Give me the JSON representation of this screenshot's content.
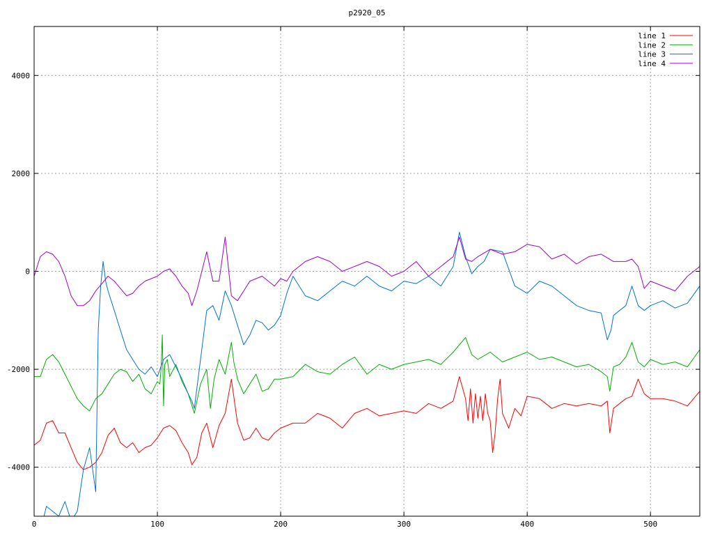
{
  "chart_data": {
    "type": "line",
    "title": "p2920_05",
    "xlabel": "",
    "ylabel": "",
    "xlim": [
      0,
      540
    ],
    "ylim": [
      -5000,
      5000
    ],
    "x_ticks": [
      0,
      100,
      200,
      300,
      400,
      500
    ],
    "y_ticks": [
      -4000,
      -2000,
      0,
      2000,
      4000
    ],
    "grid": true,
    "legend_position": "top-right",
    "series": [
      {
        "name": "line 1",
        "color": "#ff0000",
        "x": [
          0,
          5,
          10,
          15,
          20,
          25,
          30,
          35,
          40,
          45,
          50,
          55,
          60,
          65,
          70,
          75,
          80,
          85,
          90,
          95,
          100,
          105,
          110,
          115,
          120,
          125,
          128,
          132,
          136,
          140,
          145,
          150,
          155,
          160,
          165,
          170,
          175,
          180,
          185,
          190,
          195,
          200,
          210,
          220,
          230,
          240,
          250,
          260,
          270,
          280,
          290,
          300,
          310,
          320,
          330,
          340,
          345,
          350,
          352,
          354,
          356,
          358,
          360,
          362,
          364,
          366,
          368,
          370,
          372,
          374,
          376,
          378,
          380,
          385,
          390,
          395,
          400,
          410,
          420,
          430,
          440,
          450,
          460,
          465,
          467,
          470,
          475,
          480,
          485,
          490,
          495,
          500,
          510,
          520,
          530,
          540
        ],
        "y": [
          -3550,
          -3450,
          -3100,
          -3050,
          -3300,
          -3300,
          -3600,
          -3900,
          -4050,
          -4000,
          -3900,
          -3700,
          -3350,
          -3200,
          -3500,
          -3600,
          -3500,
          -3700,
          -3600,
          -3550,
          -3400,
          -3200,
          -3150,
          -3250,
          -3500,
          -3700,
          -3950,
          -3800,
          -3300,
          -3100,
          -3600,
          -3150,
          -2900,
          -2200,
          -3100,
          -3450,
          -3400,
          -3200,
          -3400,
          -3450,
          -3300,
          -3200,
          -3100,
          -3100,
          -2900,
          -3000,
          -3200,
          -2900,
          -2800,
          -2950,
          -2900,
          -2850,
          -2900,
          -2700,
          -2800,
          -2650,
          -2150,
          -2600,
          -3050,
          -2400,
          -3100,
          -2500,
          -3000,
          -2550,
          -3050,
          -2500,
          -2900,
          -3050,
          -3700,
          -3300,
          -2600,
          -2200,
          -2900,
          -3200,
          -2800,
          -2950,
          -2550,
          -2600,
          -2800,
          -2700,
          -2750,
          -2700,
          -2750,
          -2650,
          -3300,
          -2800,
          -2700,
          -2600,
          -2550,
          -2200,
          -2500,
          -2600,
          -2600,
          -2650,
          -2750,
          -2450
        ]
      },
      {
        "name": "line 2",
        "color": "#00b000",
        "x": [
          0,
          5,
          10,
          15,
          20,
          25,
          30,
          35,
          40,
          45,
          50,
          55,
          60,
          65,
          70,
          75,
          80,
          85,
          90,
          95,
          100,
          102,
          103,
          104,
          105,
          106,
          108,
          110,
          115,
          120,
          125,
          130,
          135,
          140,
          143,
          146,
          150,
          155,
          160,
          162,
          165,
          170,
          175,
          180,
          185,
          190,
          195,
          200,
          210,
          220,
          230,
          240,
          250,
          260,
          270,
          280,
          290,
          300,
          310,
          320,
          330,
          340,
          350,
          355,
          360,
          370,
          380,
          390,
          400,
          410,
          420,
          430,
          440,
          450,
          460,
          465,
          467,
          470,
          475,
          480,
          485,
          490,
          495,
          500,
          510,
          520,
          530,
          540
        ],
        "y": [
          -2150,
          -2150,
          -1800,
          -1700,
          -1850,
          -2100,
          -2350,
          -2600,
          -2750,
          -2850,
          -2600,
          -2500,
          -2300,
          -2100,
          -2000,
          -2050,
          -2250,
          -2100,
          -2400,
          -2500,
          -2250,
          -2300,
          -2000,
          -1300,
          -2750,
          -1900,
          -1800,
          -2150,
          -1900,
          -2250,
          -2500,
          -2900,
          -2300,
          -2000,
          -2800,
          -2200,
          -1800,
          -2100,
          -1450,
          -1850,
          -2200,
          -2500,
          -2300,
          -2100,
          -2450,
          -2400,
          -2200,
          -2200,
          -2150,
          -1900,
          -2050,
          -2100,
          -1900,
          -1750,
          -2100,
          -1900,
          -2000,
          -1900,
          -1850,
          -1800,
          -1900,
          -1650,
          -1350,
          -1700,
          -1800,
          -1650,
          -1850,
          -1750,
          -1650,
          -1800,
          -1750,
          -1850,
          -1950,
          -1900,
          -2050,
          -2150,
          -2450,
          -1950,
          -1900,
          -1750,
          -1450,
          -1850,
          -1950,
          -1800,
          -1900,
          -1850,
          -1950,
          -1600
        ]
      },
      {
        "name": "line 3",
        "color": "#0070e0",
        "x": [
          0,
          5,
          10,
          15,
          20,
          25,
          30,
          35,
          40,
          45,
          50,
          52,
          54,
          56,
          58,
          60,
          65,
          70,
          75,
          80,
          85,
          90,
          95,
          100,
          105,
          110,
          115,
          120,
          125,
          128,
          130,
          135,
          140,
          145,
          150,
          155,
          160,
          165,
          170,
          175,
          180,
          185,
          190,
          195,
          200,
          205,
          210,
          220,
          230,
          240,
          250,
          260,
          270,
          280,
          290,
          300,
          310,
          320,
          330,
          340,
          345,
          350,
          355,
          360,
          365,
          370,
          380,
          390,
          400,
          410,
          420,
          430,
          440,
          450,
          460,
          465,
          468,
          470,
          475,
          480,
          485,
          490,
          495,
          500,
          510,
          520,
          530,
          540
        ],
        "y": [
          -5500,
          -5300,
          -4800,
          -4900,
          -5000,
          -4700,
          -5100,
          -4900,
          -4050,
          -3600,
          -4500,
          -1200,
          -300,
          200,
          -200,
          -400,
          -800,
          -1200,
          -1600,
          -1800,
          -2000,
          -2100,
          -1950,
          -2150,
          -1800,
          -1700,
          -1950,
          -2200,
          -2500,
          -2650,
          -2800,
          -1800,
          -800,
          -700,
          -1000,
          -400,
          -700,
          -1100,
          -1500,
          -1300,
          -1000,
          -1050,
          -1200,
          -1100,
          -900,
          -450,
          -100,
          -500,
          -600,
          -400,
          -200,
          -300,
          -100,
          -300,
          -400,
          -200,
          -250,
          -100,
          -300,
          100,
          800,
          300,
          -50,
          100,
          200,
          450,
          400,
          -300,
          -450,
          -200,
          -300,
          -500,
          -700,
          -800,
          -850,
          -1400,
          -1200,
          -900,
          -800,
          -700,
          -300,
          -700,
          -800,
          -700,
          -600,
          -750,
          -650,
          -300
        ]
      },
      {
        "name": "line 4",
        "color": "#a000d0",
        "x": [
          0,
          5,
          10,
          15,
          20,
          25,
          30,
          35,
          40,
          45,
          50,
          55,
          60,
          65,
          70,
          75,
          80,
          85,
          90,
          95,
          100,
          105,
          110,
          115,
          120,
          125,
          128,
          132,
          136,
          140,
          145,
          150,
          155,
          160,
          165,
          170,
          175,
          180,
          185,
          190,
          195,
          200,
          205,
          210,
          215,
          220,
          230,
          240,
          250,
          260,
          270,
          280,
          290,
          300,
          310,
          320,
          330,
          340,
          345,
          350,
          355,
          360,
          370,
          380,
          390,
          400,
          410,
          420,
          430,
          440,
          450,
          460,
          470,
          480,
          485,
          490,
          495,
          500,
          510,
          520,
          530,
          540
        ],
        "y": [
          -100,
          300,
          400,
          350,
          200,
          -100,
          -500,
          -700,
          -700,
          -600,
          -400,
          -250,
          -100,
          -200,
          -350,
          -500,
          -450,
          -300,
          -200,
          -150,
          -100,
          0,
          50,
          -100,
          -300,
          -450,
          -700,
          -400,
          0,
          400,
          -200,
          -200,
          700,
          -500,
          -600,
          -400,
          -200,
          -150,
          -100,
          -200,
          -300,
          -150,
          -200,
          0,
          100,
          200,
          300,
          200,
          0,
          100,
          200,
          100,
          -100,
          0,
          200,
          -100,
          100,
          300,
          700,
          250,
          200,
          300,
          450,
          350,
          400,
          550,
          500,
          250,
          350,
          150,
          300,
          350,
          200,
          200,
          250,
          100,
          -350,
          -200,
          -300,
          -400,
          -100,
          100
        ]
      }
    ]
  }
}
